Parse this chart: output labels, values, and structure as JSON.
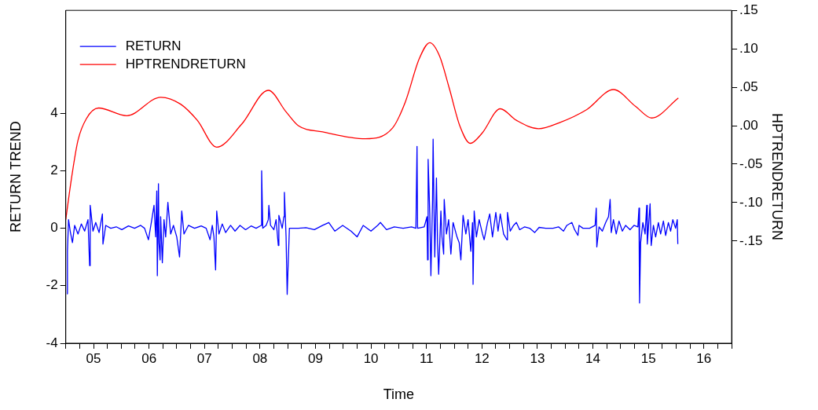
{
  "chart_data": {
    "type": "line",
    "xlabel": "Time",
    "ylabel": "RETURN TREND",
    "y2label": "HPTRENDRETURN",
    "legend": "top left",
    "grid": false,
    "marker": "none",
    "line_style": "solid",
    "xlim": [
      4.5,
      16.5
    ],
    "xticks": [
      {
        "value": 4.5,
        "label": null
      },
      {
        "value": 4.75,
        "label": null
      },
      {
        "value": 5,
        "label": "05"
      },
      {
        "value": 5.25,
        "label": null
      },
      {
        "value": 5.5,
        "label": null
      },
      {
        "value": 5.75,
        "label": null
      },
      {
        "value": 6,
        "label": "06"
      },
      {
        "value": 6.25,
        "label": null
      },
      {
        "value": 6.5,
        "label": null
      },
      {
        "value": 6.75,
        "label": null
      },
      {
        "value": 7,
        "label": "07"
      },
      {
        "value": 7.25,
        "label": null
      },
      {
        "value": 7.5,
        "label": null
      },
      {
        "value": 7.75,
        "label": null
      },
      {
        "value": 8,
        "label": "08"
      },
      {
        "value": 8.25,
        "label": null
      },
      {
        "value": 8.5,
        "label": null
      },
      {
        "value": 8.75,
        "label": null
      },
      {
        "value": 9,
        "label": "09"
      },
      {
        "value": 9.25,
        "label": null
      },
      {
        "value": 9.5,
        "label": null
      },
      {
        "value": 9.75,
        "label": null
      },
      {
        "value": 10,
        "label": "10"
      },
      {
        "value": 10.25,
        "label": null
      },
      {
        "value": 10.5,
        "label": null
      },
      {
        "value": 10.75,
        "label": null
      },
      {
        "value": 11,
        "label": "11"
      },
      {
        "value": 11.25,
        "label": null
      },
      {
        "value": 11.5,
        "label": null
      },
      {
        "value": 11.75,
        "label": null
      },
      {
        "value": 12,
        "label": "12"
      },
      {
        "value": 12.25,
        "label": null
      },
      {
        "value": 12.5,
        "label": null
      },
      {
        "value": 12.75,
        "label": null
      },
      {
        "value": 13,
        "label": "13"
      },
      {
        "value": 13.25,
        "label": null
      },
      {
        "value": 13.5,
        "label": null
      },
      {
        "value": 13.75,
        "label": null
      },
      {
        "value": 14,
        "label": "14"
      },
      {
        "value": 14.25,
        "label": null
      },
      {
        "value": 14.5,
        "label": null
      },
      {
        "value": 14.75,
        "label": null
      },
      {
        "value": 15,
        "label": "15"
      },
      {
        "value": 15.25,
        "label": null
      },
      {
        "value": 15.5,
        "label": null
      },
      {
        "value": 15.75,
        "label": null
      },
      {
        "value": 16,
        "label": "16"
      },
      {
        "value": 16.25,
        "label": null
      },
      {
        "value": 16.5,
        "label": null
      }
    ],
    "ylim": [
      -4,
      7.58
    ],
    "yticks": [
      -4,
      -2,
      0,
      2,
      4
    ],
    "y2lim": [
      -0.283,
      0.15
    ],
    "y2ticks": [
      {
        "value": -0.15,
        "label": "-.15"
      },
      {
        "value": -0.1,
        "label": "-.10"
      },
      {
        "value": -0.05,
        "label": "-.05"
      },
      {
        "value": 0,
        "label": ".00"
      },
      {
        "value": 0.05,
        "label": ".05"
      },
      {
        "value": 0.1,
        "label": ".10"
      },
      {
        "value": 0.15,
        "label": ".15"
      }
    ],
    "series": [
      {
        "name": "RETURN",
        "color": "#0000ff",
        "x": [
          4.52,
          4.53,
          4.55,
          4.58,
          4.62,
          4.66,
          4.72,
          4.78,
          4.84,
          4.9,
          4.93,
          4.94,
          4.99,
          5.04,
          5.1,
          5.16,
          5.17,
          5.22,
          5.31,
          5.41,
          5.51,
          5.63,
          5.74,
          5.85,
          5.92,
          5.99,
          6.05,
          6.09,
          6.12,
          6.14,
          6.15,
          6.17,
          6.18,
          6.2,
          6.21,
          6.24,
          6.27,
          6.3,
          6.34,
          6.39,
          6.44,
          6.5,
          6.55,
          6.59,
          6.63,
          6.71,
          6.82,
          6.94,
          7.03,
          7.1,
          7.14,
          7.17,
          7.2,
          7.22,
          7.26,
          7.32,
          7.38,
          7.47,
          7.55,
          7.64,
          7.74,
          7.84,
          7.93,
          8.02,
          8.03,
          8.05,
          8.11,
          8.15,
          8.16,
          8.19,
          8.25,
          8.29,
          8.33,
          8.34,
          8.4,
          8.43,
          8.44,
          8.47,
          8.49,
          8.5,
          8.53,
          8.69,
          8.83,
          8.98,
          9.13,
          9.24,
          9.35,
          9.49,
          9.64,
          9.75,
          9.86,
          10.0,
          10.12,
          10.17,
          10.28,
          10.42,
          10.58,
          10.73,
          10.81,
          10.83,
          10.84,
          10.96,
          11.01,
          11.02,
          11.03,
          11.06,
          11.08,
          11.11,
          11.12,
          11.14,
          11.15,
          11.17,
          11.18,
          11.2,
          11.22,
          11.26,
          11.28,
          11.31,
          11.32,
          11.36,
          11.4,
          11.44,
          11.48,
          11.55,
          11.59,
          11.62,
          11.66,
          11.71,
          11.75,
          11.8,
          11.83,
          11.84,
          11.86,
          11.9,
          11.95,
          12.01,
          12.04,
          12.1,
          12.14,
          12.19,
          12.25,
          12.29,
          12.33,
          12.39,
          12.45,
          12.46,
          12.51,
          12.57,
          12.62,
          12.68,
          12.77,
          12.86,
          12.95,
          13.03,
          13.15,
          13.28,
          13.38,
          13.47,
          13.53,
          13.62,
          13.67,
          13.73,
          13.75,
          13.82,
          13.94,
          14.04,
          14.06,
          14.07,
          14.11,
          14.17,
          14.23,
          14.28,
          14.31,
          14.33,
          14.37,
          14.42,
          14.47,
          14.53,
          14.59,
          14.67,
          14.74,
          14.81,
          14.83,
          14.84,
          14.86,
          14.9,
          14.94,
          14.97,
          14.98,
          15.03,
          15.05,
          15.09,
          15.13,
          15.18,
          15.22,
          15.27,
          15.31,
          15.36,
          15.4,
          15.44,
          15.49,
          15.52,
          15.53
        ],
        "values": [
          -2.28,
          -0.8,
          0.3,
          -0.1,
          -0.5,
          0.1,
          -0.2,
          0.15,
          -0.1,
          0.3,
          -1.3,
          0.8,
          -0.1,
          0.2,
          -0.15,
          0.5,
          -0.55,
          0.1,
          0.0,
          0.05,
          -0.05,
          0.08,
          0.0,
          0.1,
          0.0,
          -0.4,
          0.3,
          0.8,
          -0.3,
          1.3,
          -1.65,
          1.55,
          -0.5,
          -1.1,
          0.4,
          -1.2,
          0.3,
          -0.3,
          0.9,
          -0.2,
          0.1,
          -0.3,
          -1.0,
          0.6,
          -0.2,
          0.1,
          0.0,
          0.08,
          0.0,
          -0.4,
          0.1,
          -0.3,
          -1.45,
          0.6,
          -0.2,
          0.15,
          -0.15,
          0.1,
          -0.1,
          0.1,
          -0.05,
          0.08,
          0.0,
          0.1,
          2.0,
          0.0,
          0.1,
          0.3,
          0.8,
          0.1,
          -0.05,
          0.3,
          -0.6,
          0.45,
          0.0,
          0.4,
          1.25,
          -0.3,
          -2.3,
          -1.7,
          0.0,
          0.0,
          0.02,
          -0.05,
          0.1,
          0.2,
          -0.1,
          0.1,
          -0.1,
          -0.3,
          0.1,
          -0.1,
          0.1,
          0.2,
          -0.05,
          0.05,
          0.0,
          0.05,
          0.0,
          2.85,
          0.0,
          0.05,
          0.4,
          -1.1,
          2.4,
          0.5,
          -1.65,
          1.0,
          3.1,
          0.2,
          -1.0,
          0.8,
          1.75,
          -0.5,
          -1.6,
          0.6,
          -0.3,
          -0.9,
          1.0,
          -0.2,
          0.3,
          -0.9,
          0.2,
          -0.3,
          -0.5,
          -1.1,
          0.45,
          -0.2,
          0.3,
          -0.8,
          0.2,
          -1.95,
          0.6,
          -0.3,
          0.3,
          -0.2,
          -0.4,
          0.2,
          0.5,
          -0.3,
          0.55,
          -0.1,
          0.5,
          -0.2,
          -0.4,
          0.55,
          -0.1,
          0.1,
          0.2,
          -0.05,
          0.05,
          0.0,
          -0.15,
          0.03,
          0.0,
          0.0,
          0.05,
          -0.1,
          0.1,
          0.2,
          -0.05,
          -0.25,
          0.1,
          0.0,
          0.0,
          0.1,
          0.7,
          -0.65,
          0.05,
          -0.1,
          0.2,
          0.4,
          1.0,
          -0.15,
          0.3,
          -0.2,
          0.25,
          -0.1,
          0.1,
          -0.05,
          0.1,
          0.05,
          0.7,
          -2.6,
          -0.5,
          0.2,
          -0.2,
          0.8,
          -0.55,
          0.85,
          -0.6,
          0.1,
          -0.3,
          0.2,
          -0.2,
          0.25,
          -0.25,
          0.2,
          -0.1,
          0.3,
          0.0,
          0.3,
          -0.55
        ]
      },
      {
        "name": "HPTRENDRETURN",
        "color": "#ff0000",
        "axis": "y2",
        "x": [
          4.5,
          4.61,
          4.72,
          4.87,
          5.09,
          5.6,
          6.21,
          6.57,
          6.87,
          7.22,
          7.67,
          8.15,
          8.47,
          8.69,
          9.13,
          9.9,
          10.39,
          10.62,
          10.87,
          11.06,
          11.24,
          11.41,
          11.6,
          11.79,
          12.0,
          12.33,
          12.62,
          13.02,
          13.4,
          13.89,
          14.37,
          14.77,
          15.06,
          15.54
        ],
        "values": [
          -0.122,
          -0.065,
          -0.019,
          0.009,
          0.023,
          0.013,
          0.037,
          0.028,
          0.007,
          -0.028,
          0.002,
          0.046,
          0.018,
          0.0,
          -0.008,
          -0.017,
          -0.003,
          0.031,
          0.087,
          0.108,
          0.09,
          0.049,
          0.0,
          -0.023,
          -0.01,
          0.022,
          0.007,
          -0.004,
          0.004,
          0.021,
          0.047,
          0.025,
          0.01,
          0.036
        ]
      }
    ]
  }
}
